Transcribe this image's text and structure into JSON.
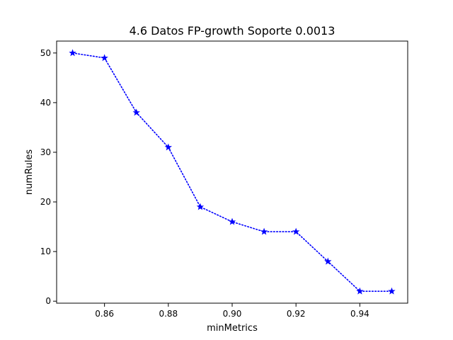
{
  "chart_data": {
    "type": "line",
    "title": "4.6 Datos FP-growth Soporte 0.0013",
    "xlabel": "minMetrics",
    "ylabel": "numRules",
    "x": [
      0.85,
      0.86,
      0.87,
      0.88,
      0.89,
      0.9,
      0.91,
      0.92,
      0.93,
      0.94,
      0.95
    ],
    "series": [
      {
        "values": [
          50,
          49,
          38,
          31,
          19,
          16,
          14,
          14,
          8,
          2,
          2
        ],
        "color": "#0000ff",
        "line_style": "dotted",
        "marker": "star"
      }
    ],
    "xlim": [
      0.845,
      0.955
    ],
    "ylim": [
      -0.4,
      52.4
    ],
    "x_ticks": [
      "0.86",
      "0.88",
      "0.90",
      "0.92",
      "0.94"
    ],
    "y_ticks": [
      "0",
      "10",
      "20",
      "30",
      "40",
      "50"
    ],
    "grid": false
  }
}
